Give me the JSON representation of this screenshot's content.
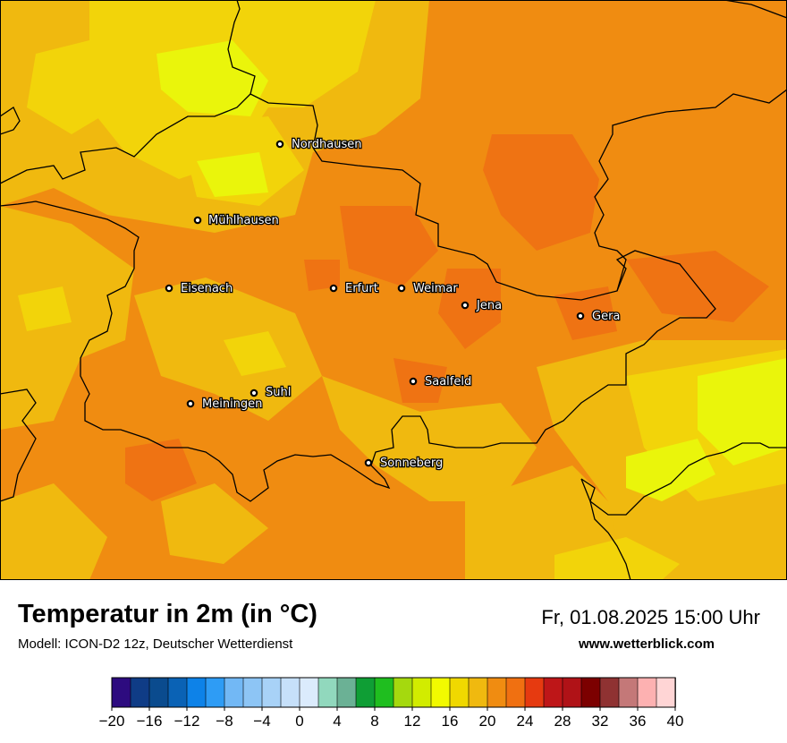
{
  "title": "Temperatur in 2m (in °C)",
  "subtitle": "Modell: ICON-D2 12z, Deutscher Wetterdienst",
  "datetime": "Fr, 01.08.2025 15:00 Uhr",
  "website": "www.wetterblick.com",
  "cities": [
    {
      "name": "Nordhausen",
      "icon": "city-dot-icon"
    },
    {
      "name": "Mühlhausen",
      "icon": "city-dot-icon"
    },
    {
      "name": "Eisenach",
      "icon": "city-dot-icon"
    },
    {
      "name": "Erfurt",
      "icon": "city-dot-icon"
    },
    {
      "name": "Weimar",
      "icon": "city-dot-icon"
    },
    {
      "name": "Jena",
      "icon": "city-dot-icon"
    },
    {
      "name": "Gera",
      "icon": "city-dot-icon"
    },
    {
      "name": "Saalfeld",
      "icon": "city-dot-icon"
    },
    {
      "name": "Suhl",
      "icon": "city-dot-icon"
    },
    {
      "name": "Meiningen",
      "icon": "city-dot-icon"
    },
    {
      "name": "Sonneberg",
      "icon": "city-dot-icon"
    }
  ],
  "legend": {
    "min": -20,
    "max": 40,
    "step": 2,
    "tick_labels": [
      "−20",
      "−16",
      "−12",
      "−8",
      "−4",
      "0",
      "4",
      "8",
      "12",
      "16",
      "20",
      "24",
      "28",
      "32",
      "36",
      "40"
    ],
    "colors": [
      "#2d0b7f",
      "#0f3c86",
      "#0a4b8e",
      "#0a62b5",
      "#0d82e8",
      "#2e9cf5",
      "#72b8f5",
      "#8dc5f5",
      "#a8d2f7",
      "#c6e0fa",
      "#dbebfc",
      "#91d8bd",
      "#6bb195",
      "#0f9e35",
      "#1fbe1f",
      "#a5d90e",
      "#d2ec00",
      "#f2fa00",
      "#f0d800",
      "#f0b90f",
      "#f08c11",
      "#f07011",
      "#e63a10",
      "#be1618",
      "#b01217",
      "#7c0000",
      "#8f3232",
      "#c47878",
      "#fdb1b1",
      "#ffd5d5"
    ]
  },
  "map_colors": {
    "base": "#f08c11",
    "dark_orange": "#ef7313",
    "light_orange": "#f0b90f",
    "yellow": "#f2d40a",
    "bright_yellow": "#eaf50b",
    "border": "#000000"
  }
}
